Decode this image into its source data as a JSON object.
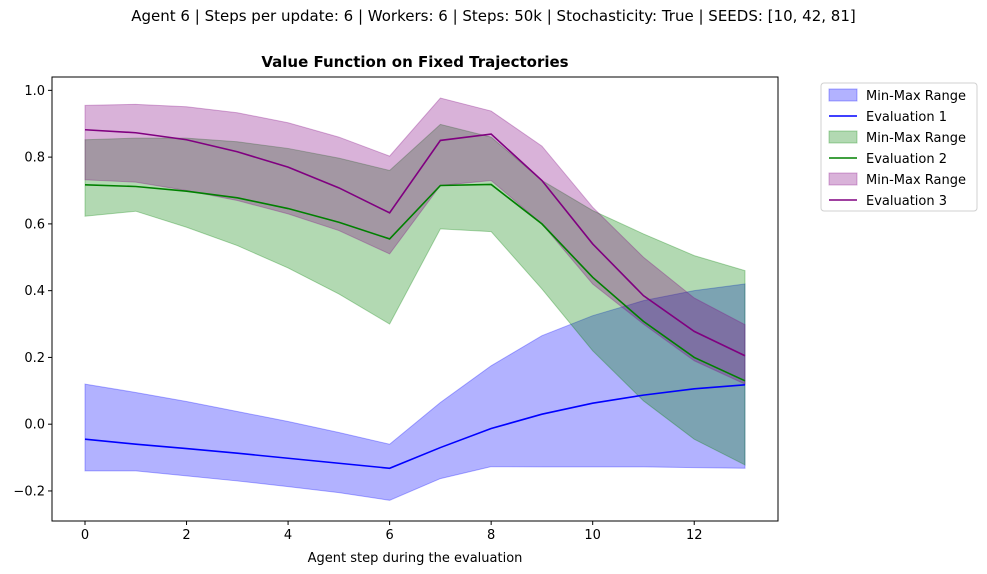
{
  "suptitle": "Agent 6 | Steps per update: 6 | Workers: 6 | Steps: 50k | Stochasticity: True | SEEDS: [10, 42, 81]",
  "chart_data": {
    "type": "line",
    "title": "Value Function on Fixed Trajectories",
    "xlabel": "Agent step during the evaluation",
    "ylabel": "",
    "xlim": [
      -0.65,
      13.65
    ],
    "ylim": [
      -0.29,
      1.04
    ],
    "xticks": [
      0,
      2,
      4,
      6,
      8,
      10,
      12
    ],
    "yticks": [
      -0.2,
      0.0,
      0.2,
      0.4,
      0.6,
      0.8,
      1.0
    ],
    "legend_position": "outside-top-right",
    "x": [
      0,
      1,
      2,
      3,
      4,
      5,
      6,
      7,
      8,
      9,
      10,
      11,
      12,
      13
    ],
    "series": [
      {
        "name": "Evaluation 1",
        "band_name": "Min-Max Range",
        "color": "#0000ff",
        "band_color": "#0000ff",
        "values": [
          -0.045,
          -0.06,
          -0.073,
          -0.087,
          -0.102,
          -0.117,
          -0.132,
          -0.07,
          -0.013,
          0.03,
          0.063,
          0.087,
          0.106,
          0.118
        ],
        "min": [
          -0.14,
          -0.14,
          -0.155,
          -0.17,
          -0.187,
          -0.205,
          -0.228,
          -0.163,
          -0.127,
          -0.128,
          -0.128,
          -0.128,
          -0.13,
          -0.132
        ],
        "max": [
          0.12,
          0.095,
          0.068,
          0.038,
          0.008,
          -0.025,
          -0.06,
          0.065,
          0.175,
          0.265,
          0.325,
          0.37,
          0.4,
          0.42
        ]
      },
      {
        "name": "Evaluation 2",
        "band_name": "Min-Max Range",
        "color": "#008000",
        "band_color": "#008000",
        "values": [
          0.717,
          0.712,
          0.698,
          0.678,
          0.646,
          0.605,
          0.555,
          0.715,
          0.718,
          0.6,
          0.44,
          0.308,
          0.2,
          0.13
        ],
        "min": [
          0.623,
          0.638,
          0.59,
          0.535,
          0.468,
          0.39,
          0.3,
          0.585,
          0.577,
          0.405,
          0.22,
          0.07,
          -0.045,
          -0.122
        ],
        "max": [
          0.852,
          0.857,
          0.857,
          0.846,
          0.826,
          0.797,
          0.76,
          0.898,
          0.86,
          0.73,
          0.64,
          0.57,
          0.505,
          0.46
        ]
      },
      {
        "name": "Evaluation 3",
        "band_name": "Min-Max Range",
        "color": "#800080",
        "band_color": "#800080",
        "values": [
          0.882,
          0.873,
          0.852,
          0.816,
          0.77,
          0.708,
          0.633,
          0.85,
          0.869,
          0.73,
          0.54,
          0.385,
          0.278,
          0.205
        ],
        "min": [
          0.732,
          0.725,
          0.7,
          0.67,
          0.63,
          0.58,
          0.51,
          0.715,
          0.73,
          0.6,
          0.42,
          0.3,
          0.19,
          0.12
        ],
        "max": [
          0.955,
          0.958,
          0.951,
          0.933,
          0.903,
          0.86,
          0.803,
          0.977,
          0.938,
          0.833,
          0.65,
          0.5,
          0.378,
          0.298
        ]
      }
    ]
  }
}
